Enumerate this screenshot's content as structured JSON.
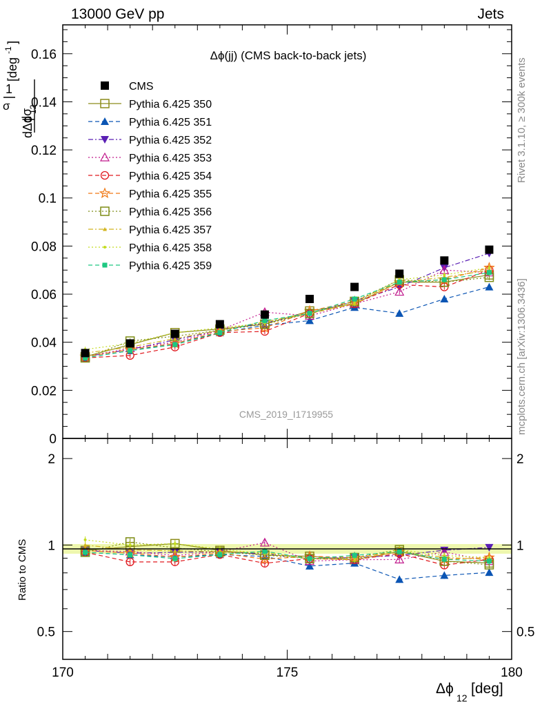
{
  "header": {
    "left": "13000 GeV pp",
    "right": "Jets"
  },
  "side_labels": {
    "rivet": "Rivet 3.1.10, ≥ 300k events",
    "mcplots": "mcplots.cern.ch [arXiv:1306.3436]"
  },
  "chart_data": {
    "type": "scatter",
    "title": "Δϕ(jj) (CMS back-to-back jets)",
    "watermark": "CMS_2019_I1719955",
    "ylabel_main": "1/σ dσ/dΔϕ12 [deg⁻¹]",
    "ylabel_ratio": "Ratio to CMS",
    "xlabel": "Δϕ12 [deg]",
    "xlim": [
      170,
      180
    ],
    "ylim_main": [
      0,
      0.172
    ],
    "ylim_ratio": [
      0.4,
      2.35
    ],
    "ratio_log_scale": true,
    "x_ticks": [
      "170",
      "175",
      "180"
    ],
    "y_ticks_main": [
      "0",
      "0.02",
      "0.04",
      "0.06",
      "0.08",
      "0.1",
      "0.12",
      "0.14",
      "0.16"
    ],
    "y_ticks_ratio": [
      "0.5",
      "1",
      "2"
    ],
    "x": [
      170.5,
      171.5,
      172.5,
      173.5,
      174.5,
      175.5,
      176.5,
      177.5,
      178.5,
      179.5
    ],
    "data": {
      "name": "CMS",
      "color": "#000000",
      "values": [
        0.0355,
        0.0395,
        0.0435,
        0.0475,
        0.0515,
        0.058,
        0.063,
        0.0685,
        0.074,
        0.0785
      ]
    },
    "series": [
      {
        "name": "Pythia 6.425 350",
        "color": "#8c8c1a",
        "marker": "square-open",
        "dash": "solid",
        "values": [
          0.034,
          0.039,
          0.044,
          0.0455,
          0.0475,
          0.053,
          0.056,
          0.065,
          0.065,
          0.068
        ]
      },
      {
        "name": "Pythia 6.425 351",
        "color": "#0b55b4",
        "marker": "triangle-up",
        "dash": "dashed",
        "values": [
          0.0335,
          0.0365,
          0.0395,
          0.044,
          0.047,
          0.049,
          0.0545,
          0.052,
          0.058,
          0.063
        ]
      },
      {
        "name": "Pythia 6.425 352",
        "color": "#5a1fb4",
        "marker": "triangle-down",
        "dash": "dashdot",
        "values": [
          0.034,
          0.037,
          0.041,
          0.045,
          0.048,
          0.052,
          0.057,
          0.063,
          0.071,
          0.077
        ]
      },
      {
        "name": "Pythia 6.425 353",
        "color": "#c0198c",
        "marker": "triangle-open",
        "dash": "dotted",
        "values": [
          0.034,
          0.0375,
          0.04,
          0.045,
          0.0525,
          0.051,
          0.056,
          0.061,
          0.07,
          0.069
        ]
      },
      {
        "name": "Pythia 6.425 354",
        "color": "#e0191e",
        "marker": "circle-open",
        "dash": "dashed",
        "values": [
          0.0335,
          0.0345,
          0.038,
          0.044,
          0.0445,
          0.052,
          0.056,
          0.064,
          0.063,
          0.07
        ]
      },
      {
        "name": "Pythia 6.425 355",
        "color": "#f07814",
        "marker": "star-open",
        "dash": "dashed",
        "values": [
          0.034,
          0.037,
          0.0395,
          0.0445,
          0.046,
          0.053,
          0.057,
          0.065,
          0.066,
          0.071
        ]
      },
      {
        "name": "Pythia 6.425 356",
        "color": "#7d8c14",
        "marker": "square-open",
        "dash": "dotted",
        "values": [
          0.0335,
          0.0405,
          0.0425,
          0.045,
          0.0475,
          0.052,
          0.057,
          0.066,
          0.065,
          0.067
        ]
      },
      {
        "name": "Pythia 6.425 357",
        "color": "#d2b41e",
        "marker": "tri-small",
        "dash": "dashdot",
        "values": [
          0.0355,
          0.038,
          0.0415,
          0.045,
          0.0485,
          0.052,
          0.056,
          0.065,
          0.067,
          0.07
        ]
      },
      {
        "name": "Pythia 6.425 358",
        "color": "#c3dc1e",
        "marker": "dot-small",
        "dash": "dotted",
        "values": [
          0.037,
          0.0395,
          0.044,
          0.046,
          0.048,
          0.052,
          0.0565,
          0.066,
          0.068,
          0.071
        ]
      },
      {
        "name": "Pythia 6.425 359",
        "color": "#1ec882",
        "marker": "square-filled-small",
        "dash": "dashed",
        "values": [
          0.0335,
          0.0365,
          0.039,
          0.044,
          0.049,
          0.052,
          0.058,
          0.065,
          0.066,
          0.069
        ]
      }
    ]
  }
}
